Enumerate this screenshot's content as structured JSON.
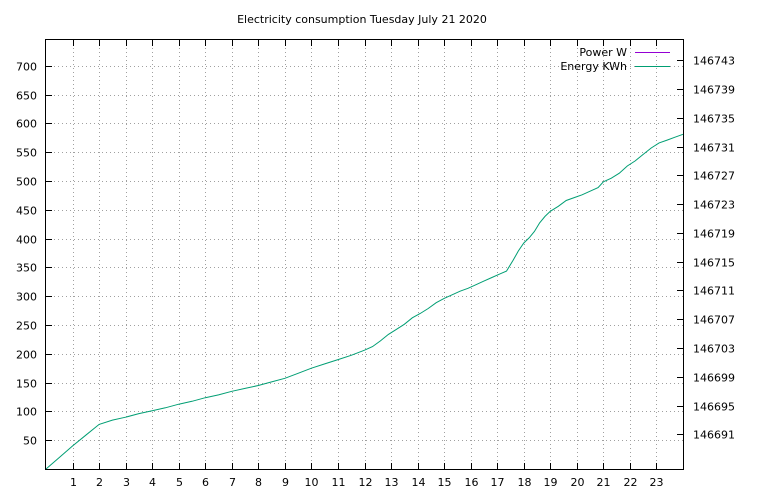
{
  "chart_data": {
    "type": "line",
    "title": "Electricity consumption Tuesday July 21 2020",
    "grid": true,
    "legend_position": "top-right",
    "x": {
      "range": [
        0,
        24
      ],
      "ticks": [
        1,
        2,
        3,
        4,
        5,
        6,
        7,
        8,
        9,
        10,
        11,
        12,
        13,
        14,
        15,
        16,
        17,
        18,
        19,
        20,
        21,
        22,
        23
      ],
      "tick_labels": [
        "1",
        "2",
        "3",
        "4",
        "5",
        "6",
        "7",
        "8",
        "9",
        "10",
        "11",
        "12",
        "13",
        "14",
        "15",
        "16",
        "17",
        "18",
        "19",
        "20",
        "21",
        "22",
        "23"
      ]
    },
    "y_left": {
      "range": [
        0,
        745
      ],
      "ticks": [
        50,
        100,
        150,
        200,
        250,
        300,
        350,
        400,
        450,
        500,
        550,
        600,
        650,
        700
      ],
      "tick_labels": [
        "50",
        "100",
        "150",
        "200",
        "250",
        "300",
        "350",
        "400",
        "450",
        "500",
        "550",
        "600",
        "650",
        "700"
      ]
    },
    "y_right": {
      "range": [
        146686.2,
        146745.8
      ],
      "ticks": [
        146691,
        146695,
        146699,
        146703,
        146707,
        146711,
        146715,
        146719,
        146723,
        146727,
        146731,
        146735,
        146739,
        146743
      ],
      "tick_labels": [
        "146691",
        "146695",
        "146699",
        "146703",
        "146707",
        "146711",
        "146715",
        "146719",
        "146723",
        "146727",
        "146731",
        "146735",
        "146739",
        "146743"
      ]
    },
    "series": [
      {
        "name": "Power W",
        "color": "#9400d3",
        "axis": "left",
        "x": [],
        "y": []
      },
      {
        "name": "Energy KWh",
        "color": "#009e73",
        "axis": "right",
        "x": [
          0,
          0.5,
          1,
          1.5,
          2,
          2.5,
          3,
          3.5,
          4,
          4.5,
          5,
          5.5,
          6,
          6.5,
          7,
          7.5,
          8,
          8.5,
          9,
          9.5,
          10,
          10.5,
          11,
          11.5,
          12,
          12.3,
          12.6,
          12.9,
          13.2,
          13.5,
          13.8,
          14.1,
          14.4,
          14.7,
          15.0,
          15.3,
          15.6,
          15.9,
          16.2,
          16.5,
          16.8,
          17.1,
          17.35,
          17.6,
          17.8,
          18.0,
          18.2,
          18.4,
          18.6,
          18.8,
          19.0,
          19.3,
          19.6,
          19.9,
          20.2,
          20.5,
          20.8,
          21.0,
          21.3,
          21.6,
          21.9,
          22.2,
          22.5,
          22.8,
          23.1,
          23.4,
          23.7,
          24.0
        ],
        "y": [
          146686.2,
          146687.8,
          146689.4,
          146690.9,
          146692.4,
          146693.0,
          146693.4,
          146693.9,
          146694.3,
          146694.7,
          146695.2,
          146695.6,
          146696.1,
          146696.5,
          146697.0,
          146697.4,
          146697.8,
          146698.3,
          146698.8,
          146699.5,
          146700.2,
          146700.8,
          146701.4,
          146702.0,
          146702.7,
          146703.2,
          146704.0,
          146704.9,
          146705.6,
          146706.3,
          146707.2,
          146707.8,
          146708.5,
          146709.3,
          146709.9,
          146710.4,
          146710.9,
          146711.3,
          146711.8,
          146712.3,
          146712.8,
          146713.3,
          146713.7,
          146715.2,
          146716.5,
          146717.6,
          146718.3,
          146719.2,
          146720.4,
          146721.3,
          146722.0,
          146722.7,
          146723.5,
          146723.9,
          146724.3,
          146724.8,
          146725.3,
          146726.1,
          146726.6,
          146727.3,
          146728.3,
          146729.0,
          146729.9,
          146730.8,
          146731.5,
          146731.9,
          146732.3,
          146732.7
        ]
      }
    ]
  }
}
